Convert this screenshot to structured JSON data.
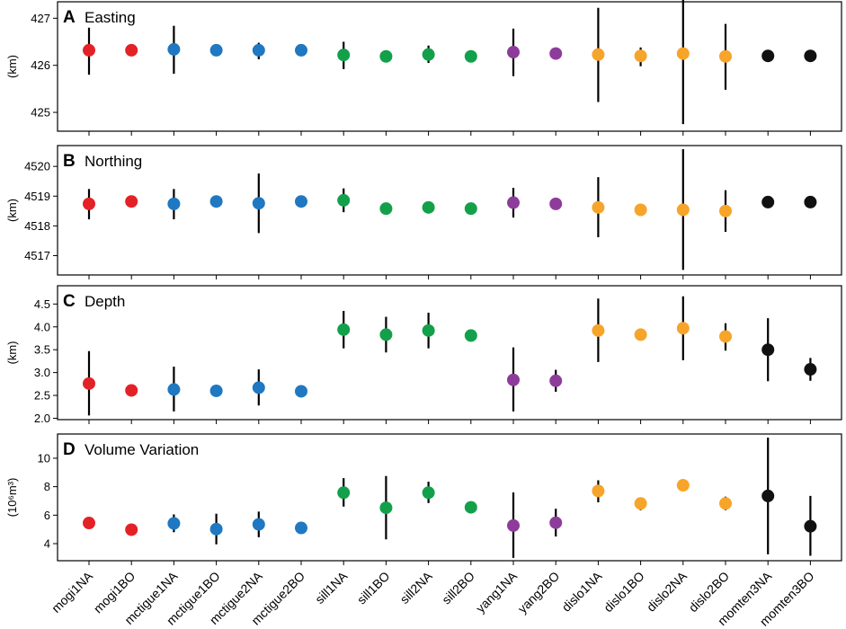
{
  "chart_data": {
    "type": "scatter",
    "categories": [
      "mogi1NA",
      "mogi1BO",
      "mctigue1NA",
      "mctigue1BO",
      "mctigue2NA",
      "mctigue2BO",
      "sill1NA",
      "sill1BO",
      "sill2NA",
      "sill2BO",
      "yang1NA",
      "yang2BO",
      "dislo1NA",
      "dislo1BO",
      "dislo2NA",
      "dislo2BO",
      "momten3NA",
      "momten3BO"
    ],
    "point_colors": [
      "#e32227",
      "#e32227",
      "#1f78c1",
      "#1f78c1",
      "#1f78c1",
      "#1f78c1",
      "#13a04a",
      "#13a04a",
      "#13a04a",
      "#13a04a",
      "#8e3c9b",
      "#8e3c9b",
      "#f7a42a",
      "#f7a42a",
      "#f7a42a",
      "#f7a42a",
      "#111111",
      "#111111"
    ],
    "panels": [
      {
        "letter": "A",
        "title": "Easting",
        "ylabel": "(km)",
        "ylim": [
          424.6,
          427.35
        ],
        "yticks": [
          425,
          426,
          427
        ],
        "ytick_labels": [
          "425",
          "426",
          "427"
        ],
        "values": [
          426.32,
          426.32,
          426.34,
          426.32,
          426.32,
          426.32,
          426.22,
          426.19,
          426.23,
          426.19,
          426.28,
          426.25,
          426.23,
          426.2,
          426.25,
          426.19,
          426.2,
          426.2
        ],
        "err_low": [
          425.8,
          null,
          425.82,
          null,
          426.13,
          null,
          425.92,
          null,
          426.05,
          null,
          425.77,
          null,
          425.22,
          425.98,
          424.75,
          425.48,
          null,
          null
        ],
        "err_high": [
          426.8,
          null,
          426.84,
          null,
          426.48,
          null,
          426.5,
          null,
          426.42,
          null,
          426.78,
          null,
          427.22,
          426.38,
          427.75,
          426.88,
          null,
          null
        ]
      },
      {
        "letter": "B",
        "title": "Northing",
        "ylabel": "(km)",
        "ylim": [
          4516.35,
          4520.7
        ],
        "yticks": [
          4517,
          4518,
          4519,
          4520
        ],
        "ytick_labels": [
          "4517",
          "4518",
          "4519",
          "4520"
        ],
        "values": [
          4518.74,
          4518.82,
          4518.74,
          4518.82,
          4518.76,
          4518.82,
          4518.86,
          4518.58,
          4518.62,
          4518.58,
          4518.78,
          4518.74,
          4518.62,
          4518.54,
          4518.54,
          4518.5,
          4518.8,
          4518.8
        ],
        "err_low": [
          4518.22,
          null,
          4518.22,
          null,
          4517.76,
          null,
          4518.46,
          null,
          null,
          null,
          4518.28,
          null,
          4517.62,
          4518.4,
          4516.52,
          4517.8,
          null,
          null
        ],
        "err_high": [
          4519.24,
          null,
          4519.24,
          null,
          4519.76,
          null,
          4519.26,
          null,
          null,
          null,
          4519.28,
          null,
          4519.64,
          4518.7,
          4520.58,
          4519.2,
          null,
          null
        ]
      },
      {
        "letter": "C",
        "title": "Depth",
        "ylabel": "(km)",
        "ylim": [
          1.97,
          4.9
        ],
        "yticks": [
          2.0,
          2.5,
          3.0,
          3.5,
          4.0,
          4.5
        ],
        "ytick_labels": [
          "2.0",
          "2.5",
          "3.0",
          "3.5",
          "4.0",
          "4.5"
        ],
        "values": [
          2.76,
          2.61,
          2.63,
          2.6,
          2.67,
          2.59,
          3.94,
          3.83,
          3.92,
          3.81,
          2.84,
          2.82,
          3.92,
          3.83,
          3.97,
          3.79,
          3.5,
          3.07
        ],
        "err_low": [
          2.06,
          null,
          2.15,
          null,
          2.28,
          null,
          3.53,
          3.44,
          3.53,
          null,
          2.15,
          2.58,
          3.23,
          null,
          3.27,
          3.48,
          2.81,
          2.82
        ],
        "err_high": [
          3.47,
          null,
          3.13,
          null,
          3.07,
          null,
          4.35,
          4.22,
          4.31,
          null,
          3.55,
          3.06,
          4.62,
          null,
          4.67,
          4.08,
          4.19,
          3.32
        ]
      },
      {
        "letter": "D",
        "title": "Volume Variation",
        "ylabel": "(10⁶m³)",
        "ylim": [
          2.8,
          11.7
        ],
        "yticks": [
          4,
          6,
          8,
          10
        ],
        "ytick_labels": [
          "4",
          "6",
          "8",
          "10"
        ],
        "values": [
          5.45,
          4.98,
          5.42,
          5.02,
          5.35,
          5.1,
          7.58,
          6.52,
          7.58,
          6.55,
          5.27,
          5.47,
          7.7,
          6.82,
          8.1,
          6.82,
          7.35,
          5.22
        ],
        "err_low": [
          null,
          null,
          4.8,
          3.95,
          4.45,
          null,
          6.6,
          4.3,
          6.85,
          null,
          3.0,
          4.5,
          6.9,
          6.35,
          null,
          6.35,
          3.25,
          3.15
        ],
        "err_high": [
          null,
          null,
          6.05,
          6.1,
          6.25,
          null,
          8.6,
          8.75,
          8.35,
          null,
          7.6,
          6.45,
          8.45,
          7.25,
          null,
          7.3,
          11.45,
          7.35
        ]
      }
    ]
  }
}
